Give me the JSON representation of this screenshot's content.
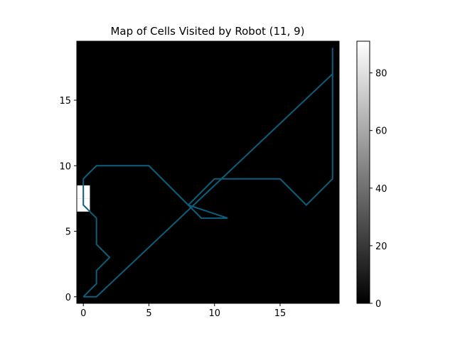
{
  "chart_data": {
    "type": "heatmap",
    "title": "Map of Cells Visited by Robot (11, 9)",
    "xlabel": "",
    "ylabel": "",
    "x_ticks": [
      0,
      5,
      10,
      15
    ],
    "y_ticks": [
      0,
      5,
      10,
      15
    ],
    "xlim": [
      -0.5,
      19.5
    ],
    "ylim": [
      -0.5,
      19.5
    ],
    "grid": false,
    "background_color": "#000000",
    "colormap": "gray",
    "colorbar": {
      "range": [
        0,
        91
      ],
      "ticks": [
        0,
        20,
        40,
        60,
        80
      ]
    },
    "cells": [
      {
        "x": 0,
        "y": 7,
        "value": 91
      },
      {
        "x": 0,
        "y": 8,
        "value": 91
      }
    ],
    "path_color": "#0c5f7a",
    "path": [
      [
        0,
        0
      ],
      [
        1,
        0
      ],
      [
        19,
        17
      ],
      [
        19,
        19
      ],
      [
        19,
        9
      ],
      [
        17,
        7
      ],
      [
        15,
        9
      ],
      [
        11,
        9
      ],
      [
        10,
        9
      ],
      [
        8,
        7
      ],
      [
        9,
        6
      ],
      [
        11,
        6
      ],
      [
        8,
        7
      ],
      [
        5,
        10
      ],
      [
        1,
        10
      ],
      [
        0,
        9
      ],
      [
        0,
        7
      ],
      [
        1,
        6
      ],
      [
        1,
        4
      ],
      [
        2,
        3
      ],
      [
        1,
        2
      ],
      [
        1,
        1
      ],
      [
        0,
        0
      ]
    ]
  }
}
